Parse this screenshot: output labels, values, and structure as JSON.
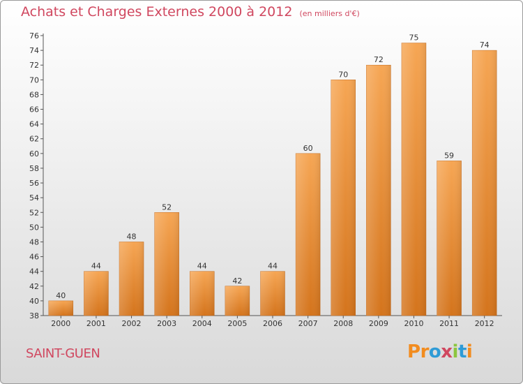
{
  "header": {
    "title": "Achats et Charges Externes 2000 à 2012",
    "unit": "(en milliers d'€)"
  },
  "footer": {
    "city": "SAINT-GUEN",
    "logo_text": "Proxiti"
  },
  "colors": {
    "title": "#d0475f",
    "bar_light": "#f6a654",
    "bar_dark": "#d4741c",
    "logo": [
      "#f28c1f",
      "#f28c1f",
      "#2e9bd6",
      "#d0475f",
      "#8cc63f",
      "#2e9bd6",
      "#f28c1f"
    ]
  },
  "chart_data": {
    "type": "bar",
    "title": "Achats et Charges Externes 2000 à 2012",
    "subtitle": "(en milliers d'€)",
    "xlabel": "",
    "ylabel": "",
    "categories": [
      "2000",
      "2001",
      "2002",
      "2003",
      "2004",
      "2005",
      "2006",
      "2007",
      "2008",
      "2009",
      "2010",
      "2011",
      "2012"
    ],
    "values": [
      40,
      44,
      48,
      52,
      44,
      42,
      44,
      60,
      70,
      72,
      75,
      59,
      74
    ],
    "ylim": [
      38,
      76
    ],
    "ytick_step": 2,
    "grid": false,
    "legend": "none"
  }
}
